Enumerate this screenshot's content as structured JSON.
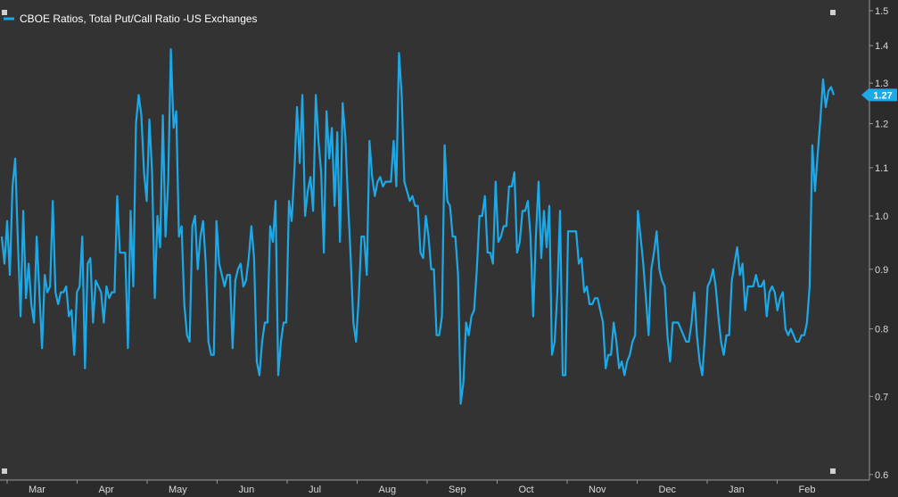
{
  "colors": {
    "background": "#2b2b2b",
    "plot_background": "#333333",
    "series": "#1da9e8",
    "axis_text": "#d9d9d9",
    "axis_line": "#9a9a9a"
  },
  "chart_data": {
    "type": "line",
    "title": "",
    "xlabel": "",
    "ylabel": "",
    "y_scale": "log",
    "ylim": [
      0.6,
      1.5
    ],
    "y_ticks": [
      "0.6",
      "0.7",
      "0.8",
      "0.9",
      "1.0",
      "1.1",
      "1.2",
      "1.3",
      "1.4",
      "1.5"
    ],
    "x_month_labels": [
      "Mar",
      "Apr",
      "May",
      "Jun",
      "Jul",
      "Aug",
      "Sep",
      "Oct",
      "Nov",
      "Dec",
      "Jan",
      "Feb"
    ],
    "grid": false,
    "legend_position": "top-left",
    "last_value_label": "1.27",
    "series": [
      {
        "name": "CBOE Ratios, Total Put/Call Ratio -US Exchanges",
        "values": [
          0.96,
          0.91,
          0.99,
          0.89,
          1.06,
          1.12,
          0.95,
          0.82,
          1.01,
          0.85,
          0.91,
          0.84,
          0.81,
          0.96,
          0.86,
          0.77,
          0.89,
          0.86,
          0.87,
          1.03,
          0.86,
          0.84,
          0.86,
          0.86,
          0.87,
          0.82,
          0.83,
          0.76,
          0.86,
          0.87,
          0.96,
          0.74,
          0.91,
          0.92,
          0.81,
          0.88,
          0.87,
          0.86,
          0.81,
          0.87,
          0.85,
          0.86,
          0.86,
          1.04,
          0.93,
          0.93,
          0.93,
          0.77,
          1.01,
          0.87,
          1.2,
          1.27,
          1.22,
          1.09,
          1.03,
          1.21,
          1.09,
          0.85,
          1.0,
          0.94,
          1.22,
          0.96,
          1.07,
          1.39,
          1.19,
          1.23,
          0.96,
          0.98,
          0.84,
          0.79,
          0.78,
          0.98,
          1.0,
          0.9,
          0.96,
          0.99,
          0.91,
          0.78,
          0.76,
          0.76,
          0.99,
          0.91,
          0.89,
          0.87,
          0.89,
          0.89,
          0.77,
          0.88,
          0.9,
          0.91,
          0.87,
          0.88,
          0.92,
          0.98,
          0.92,
          0.75,
          0.73,
          0.78,
          0.81,
          0.81,
          0.98,
          0.95,
          1.03,
          0.73,
          0.78,
          0.81,
          0.81,
          1.03,
          0.99,
          1.09,
          1.24,
          1.11,
          1.27,
          1.0,
          1.05,
          1.08,
          1.01,
          1.27,
          1.16,
          1.09,
          0.93,
          1.23,
          1.12,
          1.19,
          1.02,
          1.18,
          0.95,
          1.25,
          1.17,
          1.03,
          0.92,
          0.81,
          0.78,
          0.85,
          0.96,
          0.96,
          0.89,
          1.16,
          1.08,
          1.04,
          1.07,
          1.08,
          1.06,
          1.07,
          1.07,
          1.07,
          1.16,
          1.06,
          1.38,
          1.27,
          1.07,
          1.05,
          1.03,
          1.04,
          1.02,
          1.02,
          0.93,
          0.92,
          1.0,
          0.96,
          0.9,
          0.9,
          0.79,
          0.79,
          0.82,
          1.15,
          1.03,
          1.02,
          0.96,
          0.96,
          0.89,
          0.69,
          0.72,
          0.81,
          0.79,
          0.82,
          0.83,
          0.9,
          1.0,
          1.0,
          1.04,
          0.93,
          0.93,
          0.91,
          1.07,
          0.95,
          0.96,
          0.98,
          0.98,
          1.06,
          1.06,
          1.09,
          0.93,
          0.95,
          1.01,
          1.01,
          1.03,
          0.96,
          0.82,
          0.96,
          1.07,
          0.92,
          1.01,
          0.94,
          1.02,
          0.76,
          0.78,
          0.86,
          1.01,
          0.73,
          0.73,
          0.97,
          0.97,
          0.97,
          0.97,
          0.91,
          0.92,
          0.86,
          0.87,
          0.84,
          0.84,
          0.85,
          0.85,
          0.83,
          0.81,
          0.74,
          0.76,
          0.76,
          0.81,
          0.78,
          0.74,
          0.75,
          0.73,
          0.75,
          0.76,
          0.78,
          0.79,
          1.01,
          0.96,
          0.91,
          0.85,
          0.79,
          0.9,
          0.93,
          0.97,
          0.9,
          0.88,
          0.87,
          0.79,
          0.75,
          0.81,
          0.81,
          0.81,
          0.8,
          0.79,
          0.78,
          0.78,
          0.81,
          0.86,
          0.79,
          0.75,
          0.73,
          0.79,
          0.87,
          0.88,
          0.9,
          0.87,
          0.82,
          0.78,
          0.76,
          0.79,
          0.79,
          0.88,
          0.91,
          0.94,
          0.89,
          0.91,
          0.83,
          0.87,
          0.87,
          0.87,
          0.89,
          0.87,
          0.87,
          0.88,
          0.82,
          0.86,
          0.87,
          0.86,
          0.83,
          0.85,
          0.86,
          0.8,
          0.79,
          0.8,
          0.79,
          0.78,
          0.78,
          0.79,
          0.79,
          0.81,
          0.87,
          1.15,
          1.05,
          1.13,
          1.21,
          1.31,
          1.24,
          1.28,
          1.29,
          1.27
        ]
      }
    ]
  }
}
